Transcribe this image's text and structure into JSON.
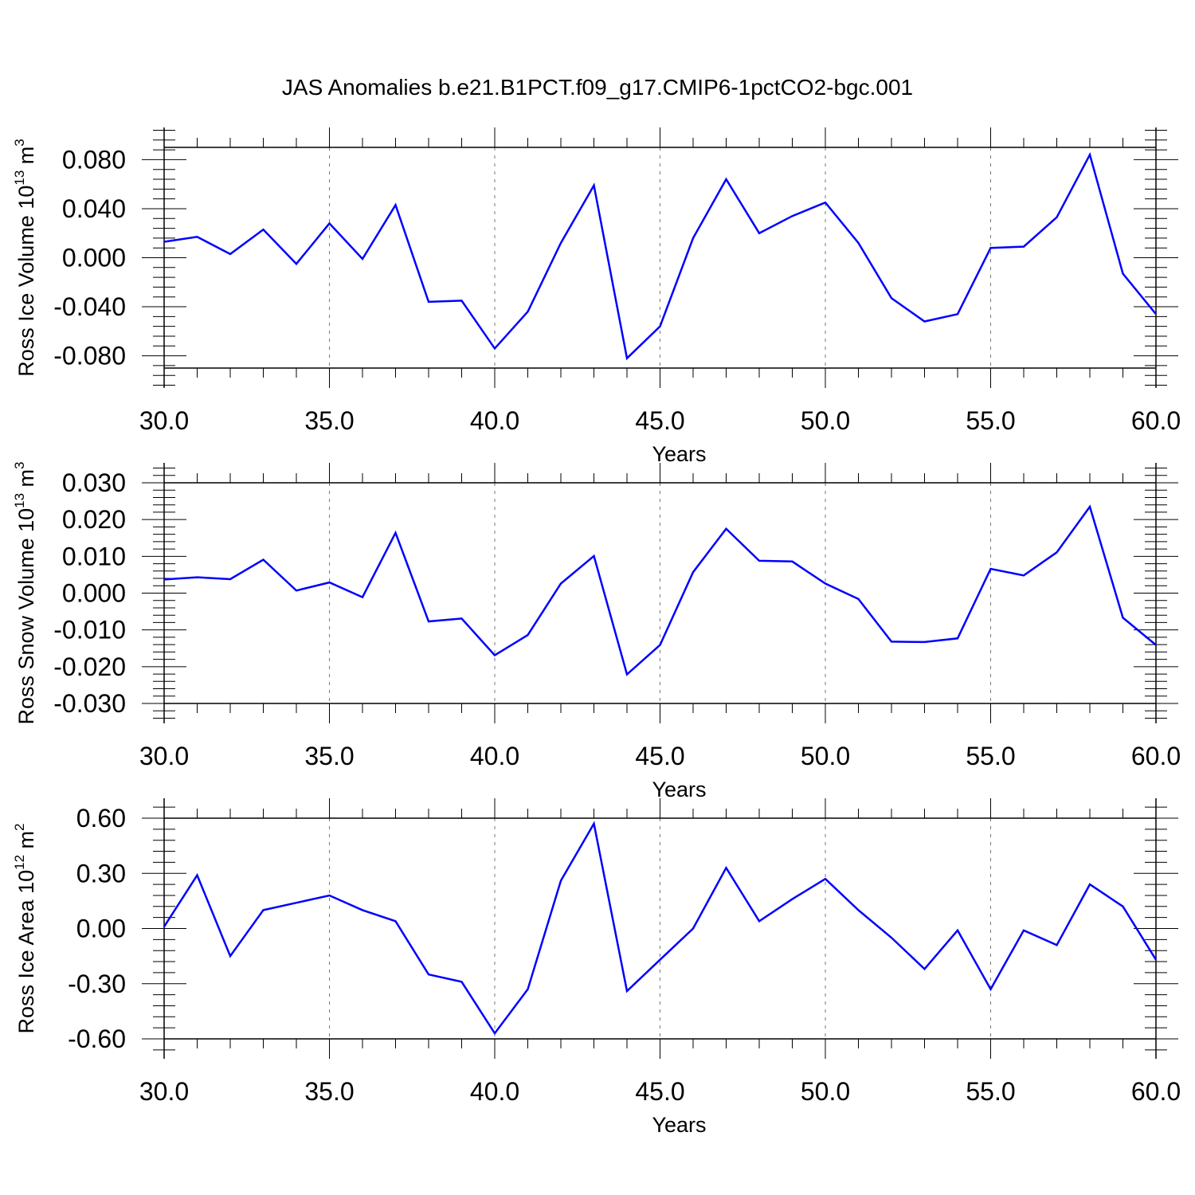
{
  "title": "JAS Anomalies b.e21.B1PCT.f09_g17.CMIP6-1pctCO2-bgc.001",
  "colors": {
    "line": "#0000ff",
    "axis": "#000000",
    "grid": "#777777"
  },
  "chart_data": [
    {
      "type": "line",
      "title": "",
      "xlabel": "Years",
      "ylabel": {
        "base": "Ross Ice Volume 10",
        "exp": "13",
        "unit": " m",
        "unit_exp": "3"
      },
      "xlim": [
        30,
        60
      ],
      "ylim": [
        -0.09,
        0.09
      ],
      "xticks": [
        "30.0",
        "35.0",
        "40.0",
        "45.0",
        "50.0",
        "55.0",
        "60.0"
      ],
      "xtick_values": [
        30,
        35,
        40,
        45,
        50,
        55,
        60
      ],
      "yticks": [
        "-0.080",
        "-0.040",
        "0.000",
        "0.040",
        "0.080"
      ],
      "ytick_values": [
        -0.08,
        -0.04,
        0.0,
        0.04,
        0.08
      ],
      "grid": "vertical dashed at major x ticks",
      "x": [
        30,
        31,
        32,
        33,
        34,
        35,
        36,
        37,
        38,
        39,
        40,
        41,
        42,
        43,
        44,
        45,
        46,
        47,
        48,
        49,
        50,
        51,
        52,
        53,
        54,
        55,
        56,
        57,
        58,
        59,
        60
      ],
      "series": [
        {
          "values": [
            0.013,
            0.017,
            0.003,
            0.023,
            -0.005,
            0.028,
            -0.001,
            0.043,
            -0.036,
            -0.035,
            -0.074,
            -0.044,
            0.012,
            0.059,
            -0.082,
            -0.056,
            0.016,
            0.064,
            0.02,
            0.034,
            0.045,
            0.012,
            -0.033,
            -0.052,
            -0.046,
            0.008,
            0.009,
            0.033,
            0.084,
            -0.013,
            -0.046
          ]
        }
      ]
    },
    {
      "type": "line",
      "title": "",
      "xlabel": "Years",
      "ylabel": {
        "base": "Ross Snow Volume 10",
        "exp": "13",
        "unit": " m",
        "unit_exp": "3"
      },
      "xlim": [
        30,
        60
      ],
      "ylim": [
        -0.03,
        0.03
      ],
      "xticks": [
        "30.0",
        "35.0",
        "40.0",
        "45.0",
        "50.0",
        "55.0",
        "60.0"
      ],
      "xtick_values": [
        30,
        35,
        40,
        45,
        50,
        55,
        60
      ],
      "yticks": [
        "-0.030",
        "-0.020",
        "-0.010",
        "0.000",
        "0.010",
        "0.020",
        "0.030"
      ],
      "ytick_values": [
        -0.03,
        -0.02,
        -0.01,
        0.0,
        0.01,
        0.02,
        0.03
      ],
      "grid": "vertical dashed at major x ticks",
      "x": [
        30,
        31,
        32,
        33,
        34,
        35,
        36,
        37,
        38,
        39,
        40,
        41,
        42,
        43,
        44,
        45,
        46,
        47,
        48,
        49,
        50,
        51,
        52,
        53,
        54,
        55,
        56,
        57,
        58,
        59,
        60
      ],
      "series": [
        {
          "values": [
            0.0037,
            0.0043,
            0.0038,
            0.0091,
            0.0007,
            0.0029,
            -0.0011,
            0.0164,
            -0.0077,
            -0.0069,
            -0.0169,
            -0.0114,
            0.0026,
            0.0101,
            -0.0221,
            -0.0141,
            0.0057,
            0.0175,
            0.0088,
            0.0086,
            0.0026,
            -0.0016,
            -0.0132,
            -0.0133,
            -0.0123,
            0.0066,
            0.0048,
            0.0111,
            0.0235,
            -0.0067,
            -0.0141
          ]
        }
      ]
    },
    {
      "type": "line",
      "title": "",
      "xlabel": "Years",
      "ylabel": {
        "base": "Ross Ice Area 10",
        "exp": "12",
        "unit": " m",
        "unit_exp": "2"
      },
      "xlim": [
        30,
        60
      ],
      "ylim": [
        -0.6,
        0.6
      ],
      "xticks": [
        "30.0",
        "35.0",
        "40.0",
        "45.0",
        "50.0",
        "55.0",
        "60.0"
      ],
      "xtick_values": [
        30,
        35,
        40,
        45,
        50,
        55,
        60
      ],
      "yticks": [
        "-0.60",
        "-0.30",
        "0.00",
        "0.30",
        "0.60"
      ],
      "ytick_values": [
        -0.6,
        -0.3,
        0.0,
        0.3,
        0.6
      ],
      "grid": "vertical dashed at major x ticks",
      "x": [
        30,
        31,
        32,
        33,
        34,
        35,
        36,
        37,
        38,
        39,
        40,
        41,
        42,
        43,
        44,
        45,
        46,
        47,
        48,
        49,
        50,
        51,
        52,
        53,
        54,
        55,
        56,
        57,
        58,
        59,
        60
      ],
      "series": [
        {
          "values": [
            0.01,
            0.29,
            -0.15,
            0.1,
            0.14,
            0.18,
            0.1,
            0.04,
            -0.25,
            -0.29,
            -0.57,
            -0.33,
            0.26,
            0.57,
            -0.34,
            -0.17,
            0.0,
            0.33,
            0.04,
            0.16,
            0.27,
            0.1,
            -0.05,
            -0.22,
            -0.01,
            -0.33,
            -0.01,
            -0.09,
            0.24,
            0.12,
            -0.17
          ]
        }
      ]
    }
  ]
}
